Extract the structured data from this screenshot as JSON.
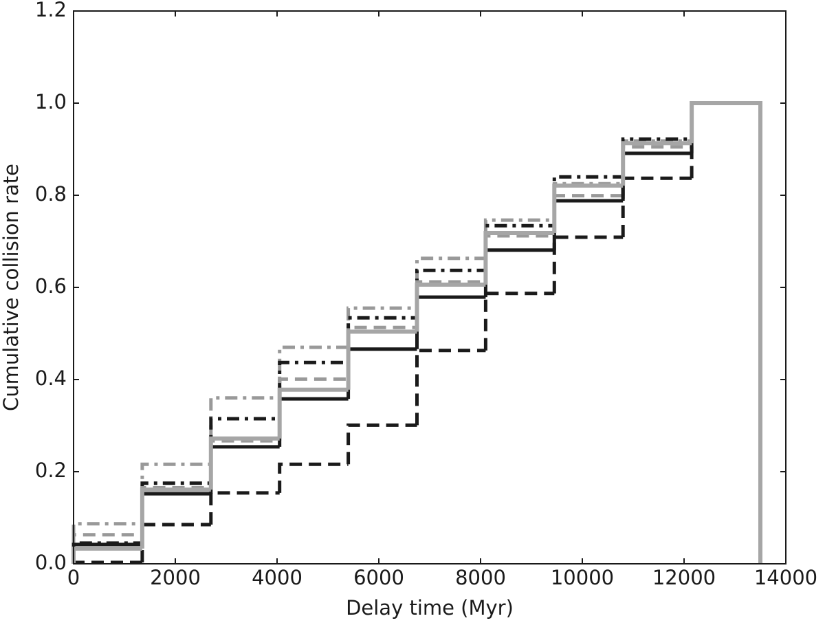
{
  "chart_data": {
    "type": "histogram",
    "xlabel": "Delay time (Myr)",
    "ylabel": "Cumulative collision rate",
    "bins": [
      0,
      1350,
      2700,
      4050,
      5400,
      6750,
      8100,
      9450,
      10800,
      12150,
      13500
    ],
    "series": [
      {
        "color": "#999999",
        "linestyle": "dashdot",
        "values": [
          0.087,
          0.216,
          0.36,
          0.47,
          0.555,
          0.663,
          0.746,
          0.825,
          0.918,
          1.0
        ]
      },
      {
        "color": "#1a1a1a",
        "linestyle": "dashdot",
        "values": [
          0.045,
          0.175,
          0.315,
          0.437,
          0.534,
          0.637,
          0.734,
          0.84,
          0.922,
          1.0
        ]
      },
      {
        "color": "#999999",
        "linestyle": "dashed",
        "values": [
          0.063,
          0.165,
          0.267,
          0.401,
          0.513,
          0.612,
          0.712,
          0.799,
          0.905,
          1.0
        ]
      },
      {
        "color": "#1a1a1a",
        "linestyle": "dashed",
        "values": [
          0.003,
          0.085,
          0.154,
          0.216,
          0.301,
          0.463,
          0.587,
          0.709,
          0.837,
          1.0
        ]
      },
      {
        "color": "#1a1a1a",
        "linestyle": "solid",
        "values": [
          0.042,
          0.152,
          0.254,
          0.358,
          0.466,
          0.579,
          0.681,
          0.788,
          0.891,
          1.0
        ]
      },
      {
        "color": "#a6a6a6",
        "linestyle": "solid",
        "values": [
          0.033,
          0.161,
          0.272,
          0.378,
          0.504,
          0.606,
          0.718,
          0.821,
          0.913,
          1.0
        ]
      }
    ],
    "xlim": [
      0,
      14000
    ],
    "xticks": [
      0,
      2000,
      4000,
      6000,
      8000,
      10000,
      12000,
      14000
    ],
    "ylim": [
      0,
      1.2
    ],
    "yticks": [
      {
        "value": 0,
        "label": "0.0"
      },
      0.2,
      0.4,
      0.6,
      0.8,
      {
        "value": 1,
        "label": "1.0"
      },
      1.2
    ]
  }
}
